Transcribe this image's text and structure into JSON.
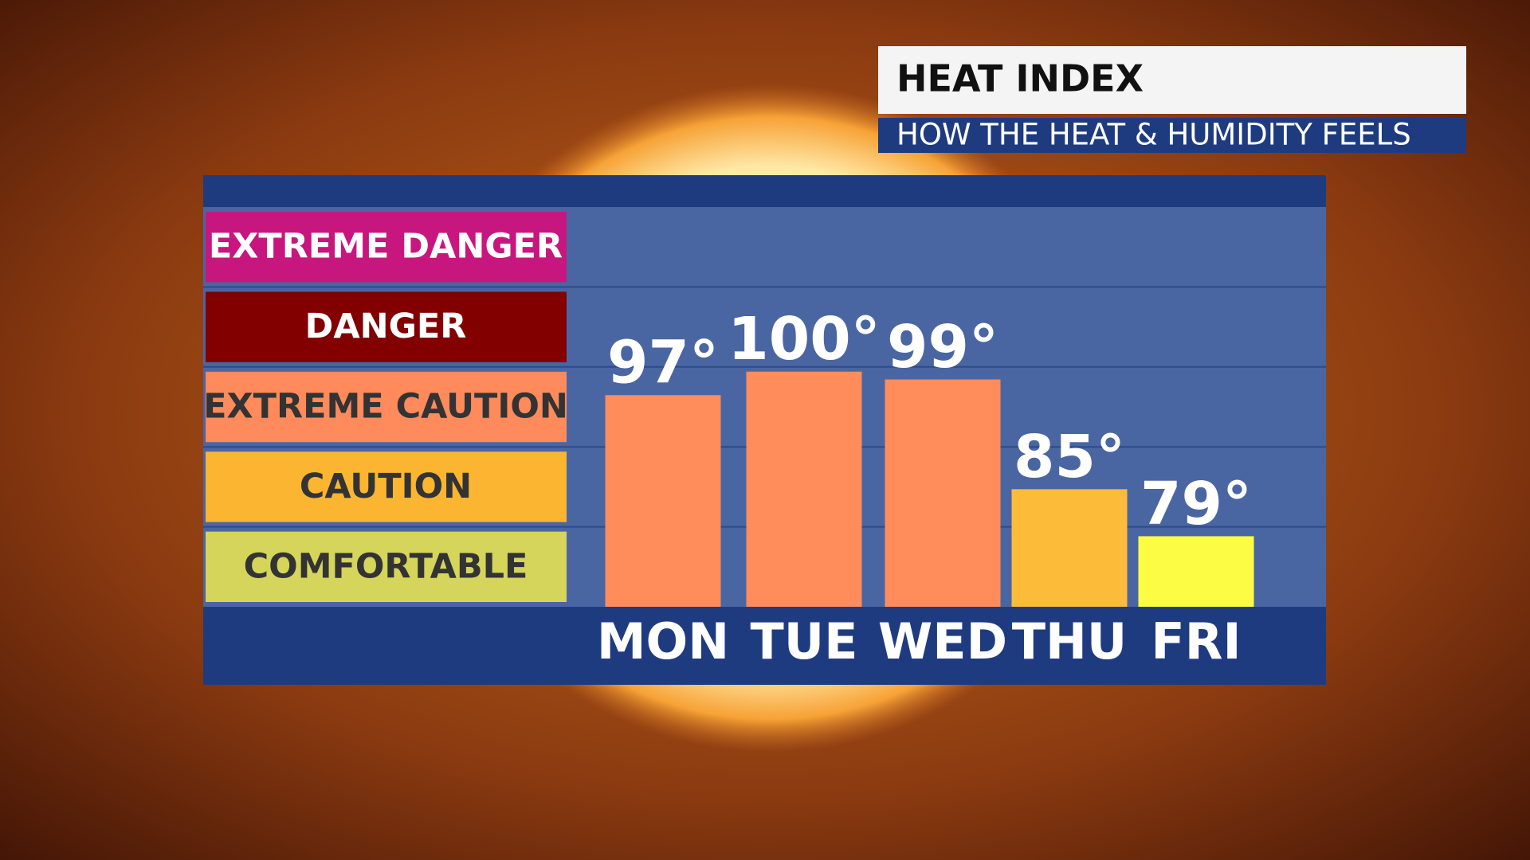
{
  "chart_data": {
    "type": "bar",
    "title": "HEAT INDEX",
    "subtitle": "HOW THE HEAT & HUMIDITY FEELS",
    "categories": [
      "MON",
      "TUE",
      "WED",
      "THU",
      "FRI"
    ],
    "values": [
      97,
      100,
      99,
      85,
      79
    ],
    "value_labels": [
      "97°",
      "100°",
      "99°",
      "85°",
      "79°"
    ],
    "colors": [
      "#ff8c5a",
      "#ff8c5a",
      "#ff8c5a",
      "#fdbb3a",
      "#fcfc45"
    ],
    "ylim": [
      70,
      121
    ],
    "bands": [
      {
        "label": "EXTREME DANGER",
        "color": "#c8167f"
      },
      {
        "label": "DANGER",
        "color": "#820000"
      },
      {
        "label": "EXTREME CAUTION",
        "color": "#ff8a5b"
      },
      {
        "label": "CAUTION",
        "color": "#fbb531"
      },
      {
        "label": "COMFORTABLE",
        "color": "#d4d55a"
      }
    ]
  }
}
